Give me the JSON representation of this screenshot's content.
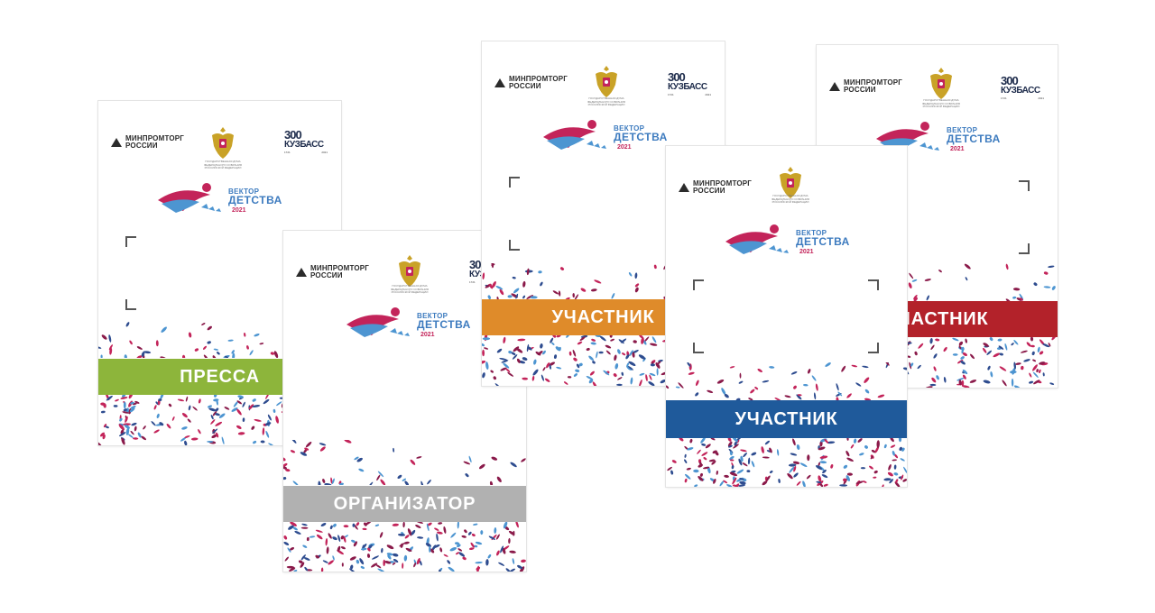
{
  "ministry": {
    "line1": "МИНПРОМТОРГ",
    "line2": "РОССИИ"
  },
  "emblem_caption": {
    "line1": "ГОСУДАРСТВЕННАЯ ДУМА",
    "line2": "ФЕДЕРАЛЬНОГО СОБРАНИЯ",
    "line3": "РОССИЙСКОЙ ФЕДЕРАЦИИ"
  },
  "anniversary": {
    "number": "300",
    "small": "лет",
    "region": "КУЗБАСС",
    "left": "1721",
    "right": "2021"
  },
  "event": {
    "line1": "ВЕКТОР",
    "line2": "ДЕТСТВА",
    "year": "2021"
  },
  "badges": [
    {
      "role": "ПРЕССА",
      "color": "#8db53b"
    },
    {
      "role": "ОРГАНИЗАТОР",
      "color": "#b1b1b1"
    },
    {
      "role": "УЧАСТНИК",
      "color": "#df8b2a"
    },
    {
      "role": "УЧАСТНИК",
      "color": "#1f5a9b"
    },
    {
      "role": "УЧАСТНИК",
      "color": "#b3222a"
    }
  ],
  "confetti_colors": [
    "#c3245a",
    "#2e4c8f",
    "#4d95d1",
    "#8a1a4a"
  ]
}
